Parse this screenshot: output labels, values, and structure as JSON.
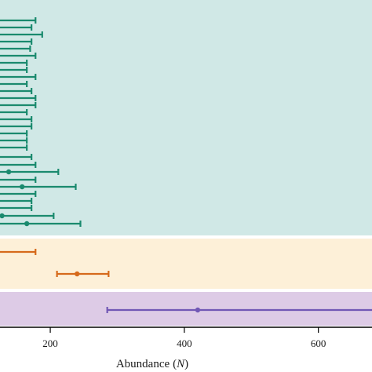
{
  "chart_data": {
    "type": "errorbar",
    "xlabel": "Abundance",
    "xlabel_var": "N",
    "xlim": [
      125,
      680
    ],
    "xticks": [
      200,
      400,
      600
    ],
    "grid": false,
    "legend": "none",
    "bands": [
      {
        "name": "",
        "color": "#d0e8e6",
        "rows": 30
      },
      {
        "name": "",
        "color": "#fdf0d8",
        "rows": 3
      },
      {
        "name": "",
        "color": "#ddcbe6",
        "rows": 2
      }
    ],
    "series": [
      {
        "color": "#1a8a6e",
        "band": 0,
        "points": [
          {
            "x": 125,
            "lo": 125,
            "hi": 178
          },
          {
            "x": 125,
            "lo": 125,
            "hi": 172
          },
          {
            "x": 125,
            "lo": 125,
            "hi": 188
          },
          {
            "x": 125,
            "lo": 125,
            "hi": 172
          },
          {
            "x": 125,
            "lo": 125,
            "hi": 170
          },
          {
            "x": 125,
            "lo": 125,
            "hi": 178
          },
          {
            "x": 125,
            "lo": 125,
            "hi": 165
          },
          {
            "x": 125,
            "lo": 125,
            "hi": 165
          },
          {
            "x": 125,
            "lo": 125,
            "hi": 178
          },
          {
            "x": 125,
            "lo": 125,
            "hi": 165
          },
          {
            "x": 125,
            "lo": 125,
            "hi": 172
          },
          {
            "x": 125,
            "lo": 125,
            "hi": 178
          },
          {
            "x": 125,
            "lo": 125,
            "hi": 178
          },
          {
            "x": 125,
            "lo": 125,
            "hi": 165
          },
          {
            "x": 125,
            "lo": 125,
            "hi": 172
          },
          {
            "x": 125,
            "lo": 125,
            "hi": 172
          },
          {
            "x": 125,
            "lo": 125,
            "hi": 165
          },
          {
            "x": 125,
            "lo": 125,
            "hi": 165
          },
          {
            "x": 125,
            "lo": 125,
            "hi": 165
          },
          {
            "x": 125,
            "lo": 125,
            "hi": 172
          },
          {
            "x": 125,
            "lo": 125,
            "hi": 178
          },
          {
            "x": 138,
            "lo": 125,
            "hi": 212
          },
          {
            "x": 125,
            "lo": 125,
            "hi": 178
          },
          {
            "x": 158,
            "lo": 125,
            "hi": 238
          },
          {
            "x": 125,
            "lo": 125,
            "hi": 178
          },
          {
            "x": 125,
            "lo": 125,
            "hi": 172
          },
          {
            "x": 125,
            "lo": 125,
            "hi": 172
          },
          {
            "x": 128,
            "lo": 125,
            "hi": 205
          },
          {
            "x": 165,
            "lo": 125,
            "hi": 245
          }
        ]
      },
      {
        "color": "#d66a1b",
        "band": 1,
        "points": [
          {
            "x": 125,
            "lo": 125,
            "hi": 178
          },
          {
            "x": 240,
            "lo": 210,
            "hi": 287
          }
        ]
      },
      {
        "color": "#7158b5",
        "band": 2,
        "points": [
          {
            "x": 420,
            "lo": 285,
            "hi": 680
          }
        ]
      }
    ]
  }
}
